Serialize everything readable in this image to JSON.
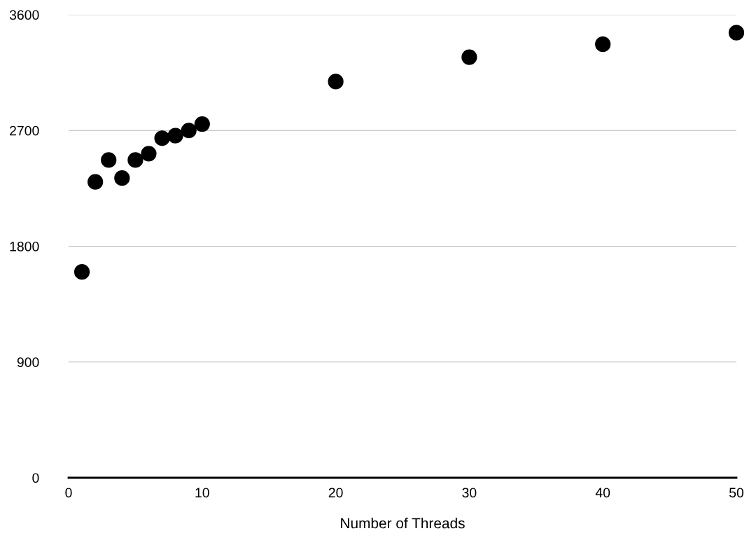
{
  "chart_data": {
    "type": "scatter",
    "xlabel": "Number of Threads",
    "x": [
      1,
      2,
      3,
      4,
      5,
      6,
      7,
      8,
      9,
      10,
      20,
      30,
      40,
      50
    ],
    "values": [
      1600,
      2300,
      2470,
      2330,
      2470,
      2520,
      2640,
      2660,
      2700,
      2750,
      3080,
      3270,
      3370,
      3460
    ],
    "color": "#000000",
    "marker": "circle",
    "xlim": [
      0,
      50
    ],
    "xticks": [
      0,
      10,
      20,
      30,
      40,
      50
    ],
    "ylim": [
      0,
      3600
    ],
    "yticks": [
      0,
      900,
      1800,
      2700,
      3600
    ],
    "grid": "y"
  }
}
